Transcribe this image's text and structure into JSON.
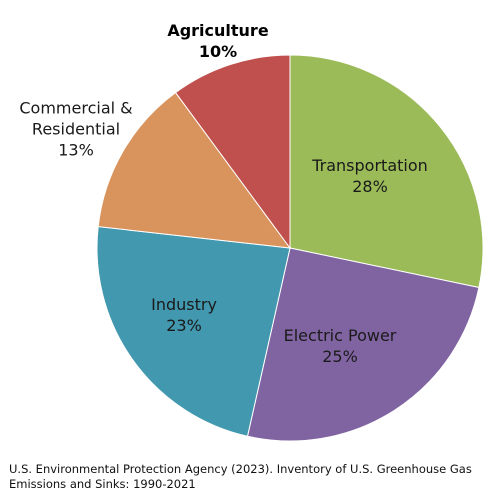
{
  "chart_data": {
    "type": "pie",
    "slices": [
      {
        "label": "Transportation",
        "value": 28,
        "value_text": "28%",
        "color": "#9BBB59",
        "bold": false
      },
      {
        "label": "Electric Power",
        "value": 25,
        "value_text": "25%",
        "color": "#8064A2",
        "bold": false
      },
      {
        "label": "Industry",
        "value": 23,
        "value_text": "23%",
        "color": "#4198AF",
        "bold": false
      },
      {
        "label": "Commercial & Residential",
        "value": 13,
        "value_text": "13%",
        "color": "#D9935C",
        "bold": false
      },
      {
        "label": "Agriculture",
        "value": 10,
        "value_text": "10%",
        "color": "#C0504D",
        "bold": true
      }
    ],
    "start": "12 o'clock",
    "direction": "clockwise"
  },
  "source_note": "U.S. Environmental Protection Agency (2023). Inventory of U.S. Greenhouse Gas Emissions and Sinks: 1990-2021"
}
